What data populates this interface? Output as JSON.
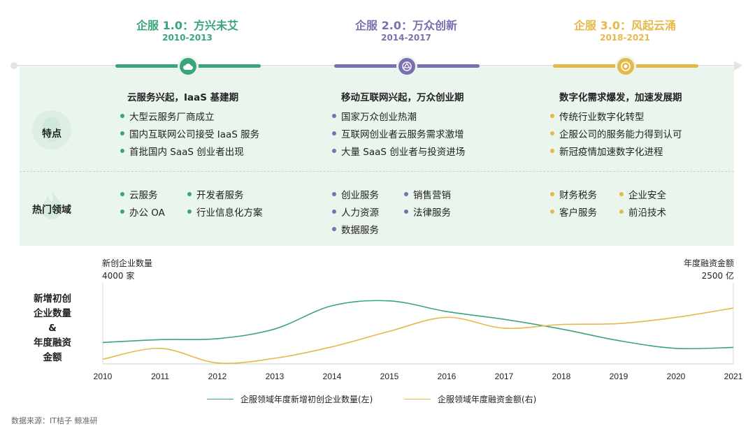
{
  "colors": {
    "green": "#3aa57a",
    "purple": "#7b6fb0",
    "yellow": "#e6b84a"
  },
  "eras": [
    {
      "title": "企服 1.0：方兴未艾",
      "years": "2010-2013",
      "icon": "cloud-icon"
    },
    {
      "title": "企服 2.0：万众创新",
      "years": "2014-2017",
      "icon": "network-icon"
    },
    {
      "title": "企服 3.0：风起云涌",
      "years": "2018-2021",
      "icon": "target-icon"
    }
  ],
  "rows": {
    "features": "特点",
    "hot_fields": "热门领域"
  },
  "features": [
    {
      "head": "云服务兴起，IaaS 基建期",
      "items": [
        "大型云服务厂商成立",
        "国内互联网公司接受 IaaS 服务",
        "首批国内 SaaS 创业者出现"
      ]
    },
    {
      "head": "移动互联网兴起，万众创业期",
      "items": [
        "国家万众创业热潮",
        "互联网创业者云服务需求激增",
        "大量 SaaS 创业者与投资进场"
      ]
    },
    {
      "head": "数字化需求爆发，加速发展期",
      "items": [
        "传统行业数字化转型",
        "企服公司的服务能力得到认可",
        "新冠疫情加速数字化进程"
      ]
    }
  ],
  "hot_fields": [
    {
      "left": [
        "云服务",
        "办公 OA"
      ],
      "right": [
        "开发者服务",
        "行业信息化方案"
      ]
    },
    {
      "left": [
        "创业服务",
        "人力资源",
        "数据服务"
      ],
      "right": [
        "销售营销",
        "法律服务"
      ]
    },
    {
      "left": [
        "财务税务",
        "客户服务"
      ],
      "right": [
        "企业安全",
        "前沿技术"
      ]
    }
  ],
  "chart_data": {
    "type": "line",
    "x": [
      "2010",
      "2011",
      "2012",
      "2013",
      "2014",
      "2015",
      "2016",
      "2017",
      "2018",
      "2019",
      "2020",
      "2021"
    ],
    "left_axis_top": "新创企业数量",
    "left_axis_max_label": "4000 家",
    "right_axis_top": "年度融资金额",
    "right_axis_max_label": "2500 亿",
    "y_title": [
      "新增初创",
      "企业数量",
      "&",
      "年度融资",
      "金额"
    ],
    "ylim_left": [
      0,
      4000
    ],
    "ylim_right": [
      0,
      2500
    ],
    "series": [
      {
        "name": "企服领域年度新增初创企业数量(左)",
        "axis": "left",
        "color": "#3aa57a",
        "values": [
          1100,
          1250,
          1300,
          1800,
          3000,
          3250,
          2700,
          2300,
          1800,
          1200,
          800,
          850
        ]
      },
      {
        "name": "企服领域年度融资金额(右)",
        "axis": "right",
        "color": "#e6b84a",
        "values": [
          150,
          500,
          30,
          180,
          550,
          1050,
          1500,
          1150,
          1270,
          1300,
          1500,
          1800
        ]
      }
    ]
  },
  "source": "数据来源：IT桔子 鲸准研"
}
